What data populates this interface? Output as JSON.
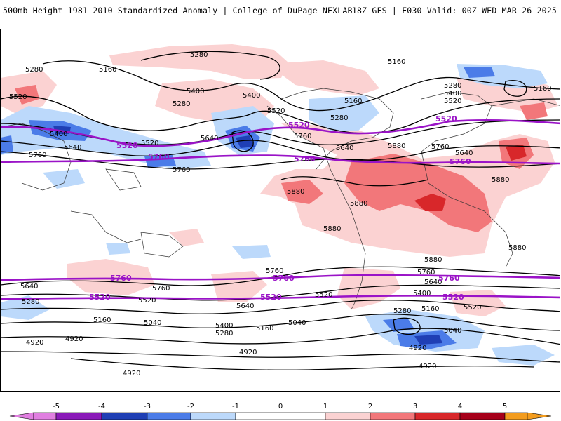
{
  "header": {
    "title": "500mb Height 1981–2010 Standardized Anomaly | College of DuPage NEXLAB",
    "valid": "18Z GFS | F030 Valid: 00Z WED MAR 26 2025"
  },
  "colors": {
    "m5": "#e07fe0",
    "m4": "#8a1ab8",
    "m3": "#1f3fb5",
    "m2": "#4b7ce8",
    "m1": "#bcd9fb",
    "zero": "#ffffff",
    "p1": "#fbd2d2",
    "p2": "#f2777a",
    "p3": "#d8272a",
    "p4": "#a6001a",
    "p5": "#f39c1e",
    "contour": "#000000",
    "highlight": "#9a13c7"
  },
  "colorbar": {
    "ticks": [
      "-5",
      "-4",
      "-3",
      "-2",
      "-1",
      "0",
      "1",
      "2",
      "3",
      "4",
      "5"
    ]
  },
  "contour_labels": {
    "c4920": "4920",
    "c5040": "5040",
    "c5160": "5160",
    "c5280": "5280",
    "c5400": "5400",
    "c5520": "5520",
    "c5640": "5640",
    "c5760": "5760",
    "c5880": "5880"
  }
}
